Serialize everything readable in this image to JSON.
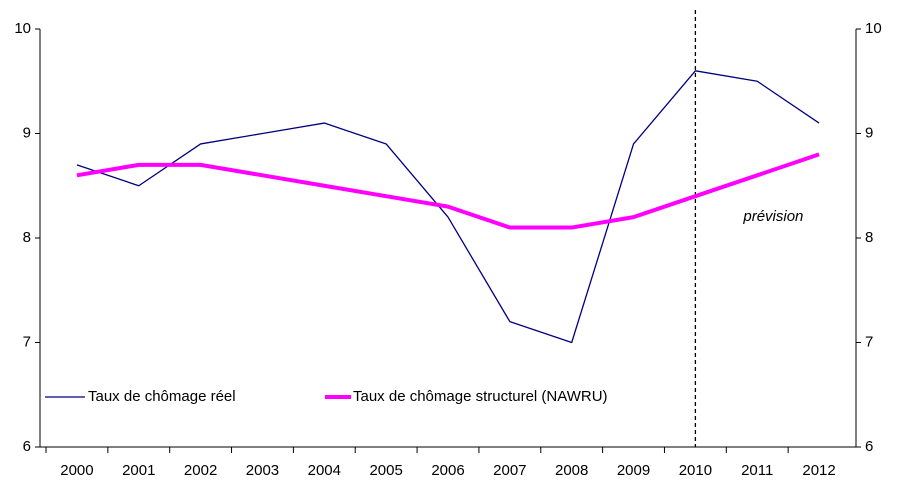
{
  "chart_data": {
    "type": "line",
    "categories": [
      "2000",
      "2001",
      "2002",
      "2003",
      "2004",
      "2005",
      "2006",
      "2007",
      "2008",
      "2009",
      "2010",
      "2011",
      "2012"
    ],
    "series": [
      {
        "name": "Taux de chômage réel",
        "color": "#000080",
        "values": [
          8.7,
          8.5,
          8.9,
          9.0,
          9.1,
          8.9,
          8.2,
          7.2,
          7.0,
          8.9,
          9.6,
          9.5,
          9.1
        ]
      },
      {
        "name": "Taux de chômage structurel (NAWRU)",
        "color": "#ff00ff",
        "values": [
          8.6,
          8.7,
          8.7,
          8.6,
          8.5,
          8.4,
          8.3,
          8.1,
          8.1,
          8.2,
          8.4,
          8.6,
          8.8
        ]
      }
    ],
    "ylim": [
      6,
      10
    ],
    "yticks": [
      6,
      7,
      8,
      9,
      10
    ],
    "y2lim": [
      6,
      10
    ],
    "y2ticks": [
      6,
      7,
      8,
      9,
      10
    ],
    "annotations": [
      {
        "text": "prévision",
        "x": "2010"
      }
    ],
    "legend": "lower left",
    "grid": false
  }
}
